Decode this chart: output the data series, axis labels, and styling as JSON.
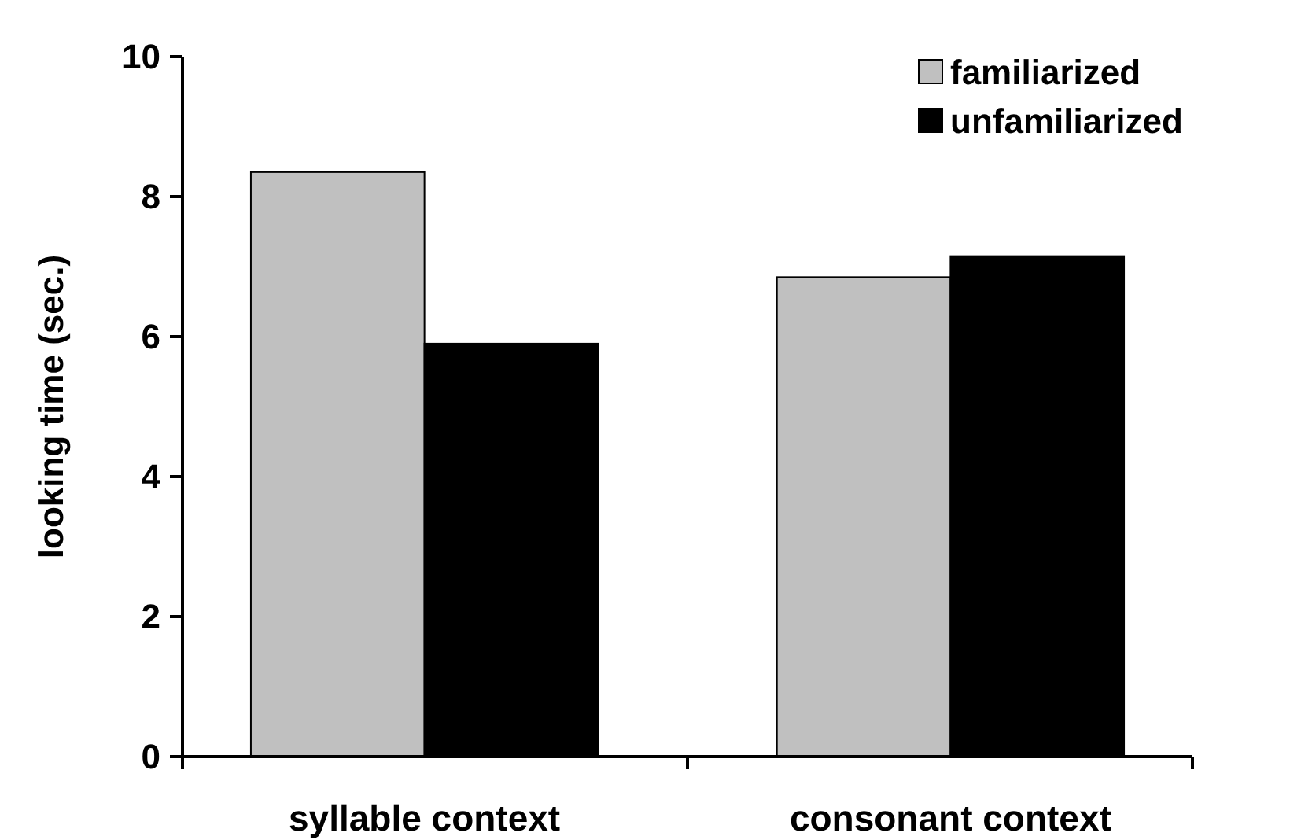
{
  "chart_data": {
    "type": "bar",
    "ylabel": "looking time (sec.)",
    "categories": [
      "syllable context",
      "consonant context"
    ],
    "series": [
      {
        "name": "familiarized",
        "color": "#c0c0c0",
        "values": [
          8.35,
          6.85
        ]
      },
      {
        "name": "unfamiliarized",
        "color": "#000000",
        "values": [
          5.9,
          7.15
        ]
      }
    ],
    "ylim": [
      0,
      10
    ],
    "yticks": [
      0,
      2,
      4,
      6,
      8,
      10
    ],
    "legend": "top right"
  }
}
